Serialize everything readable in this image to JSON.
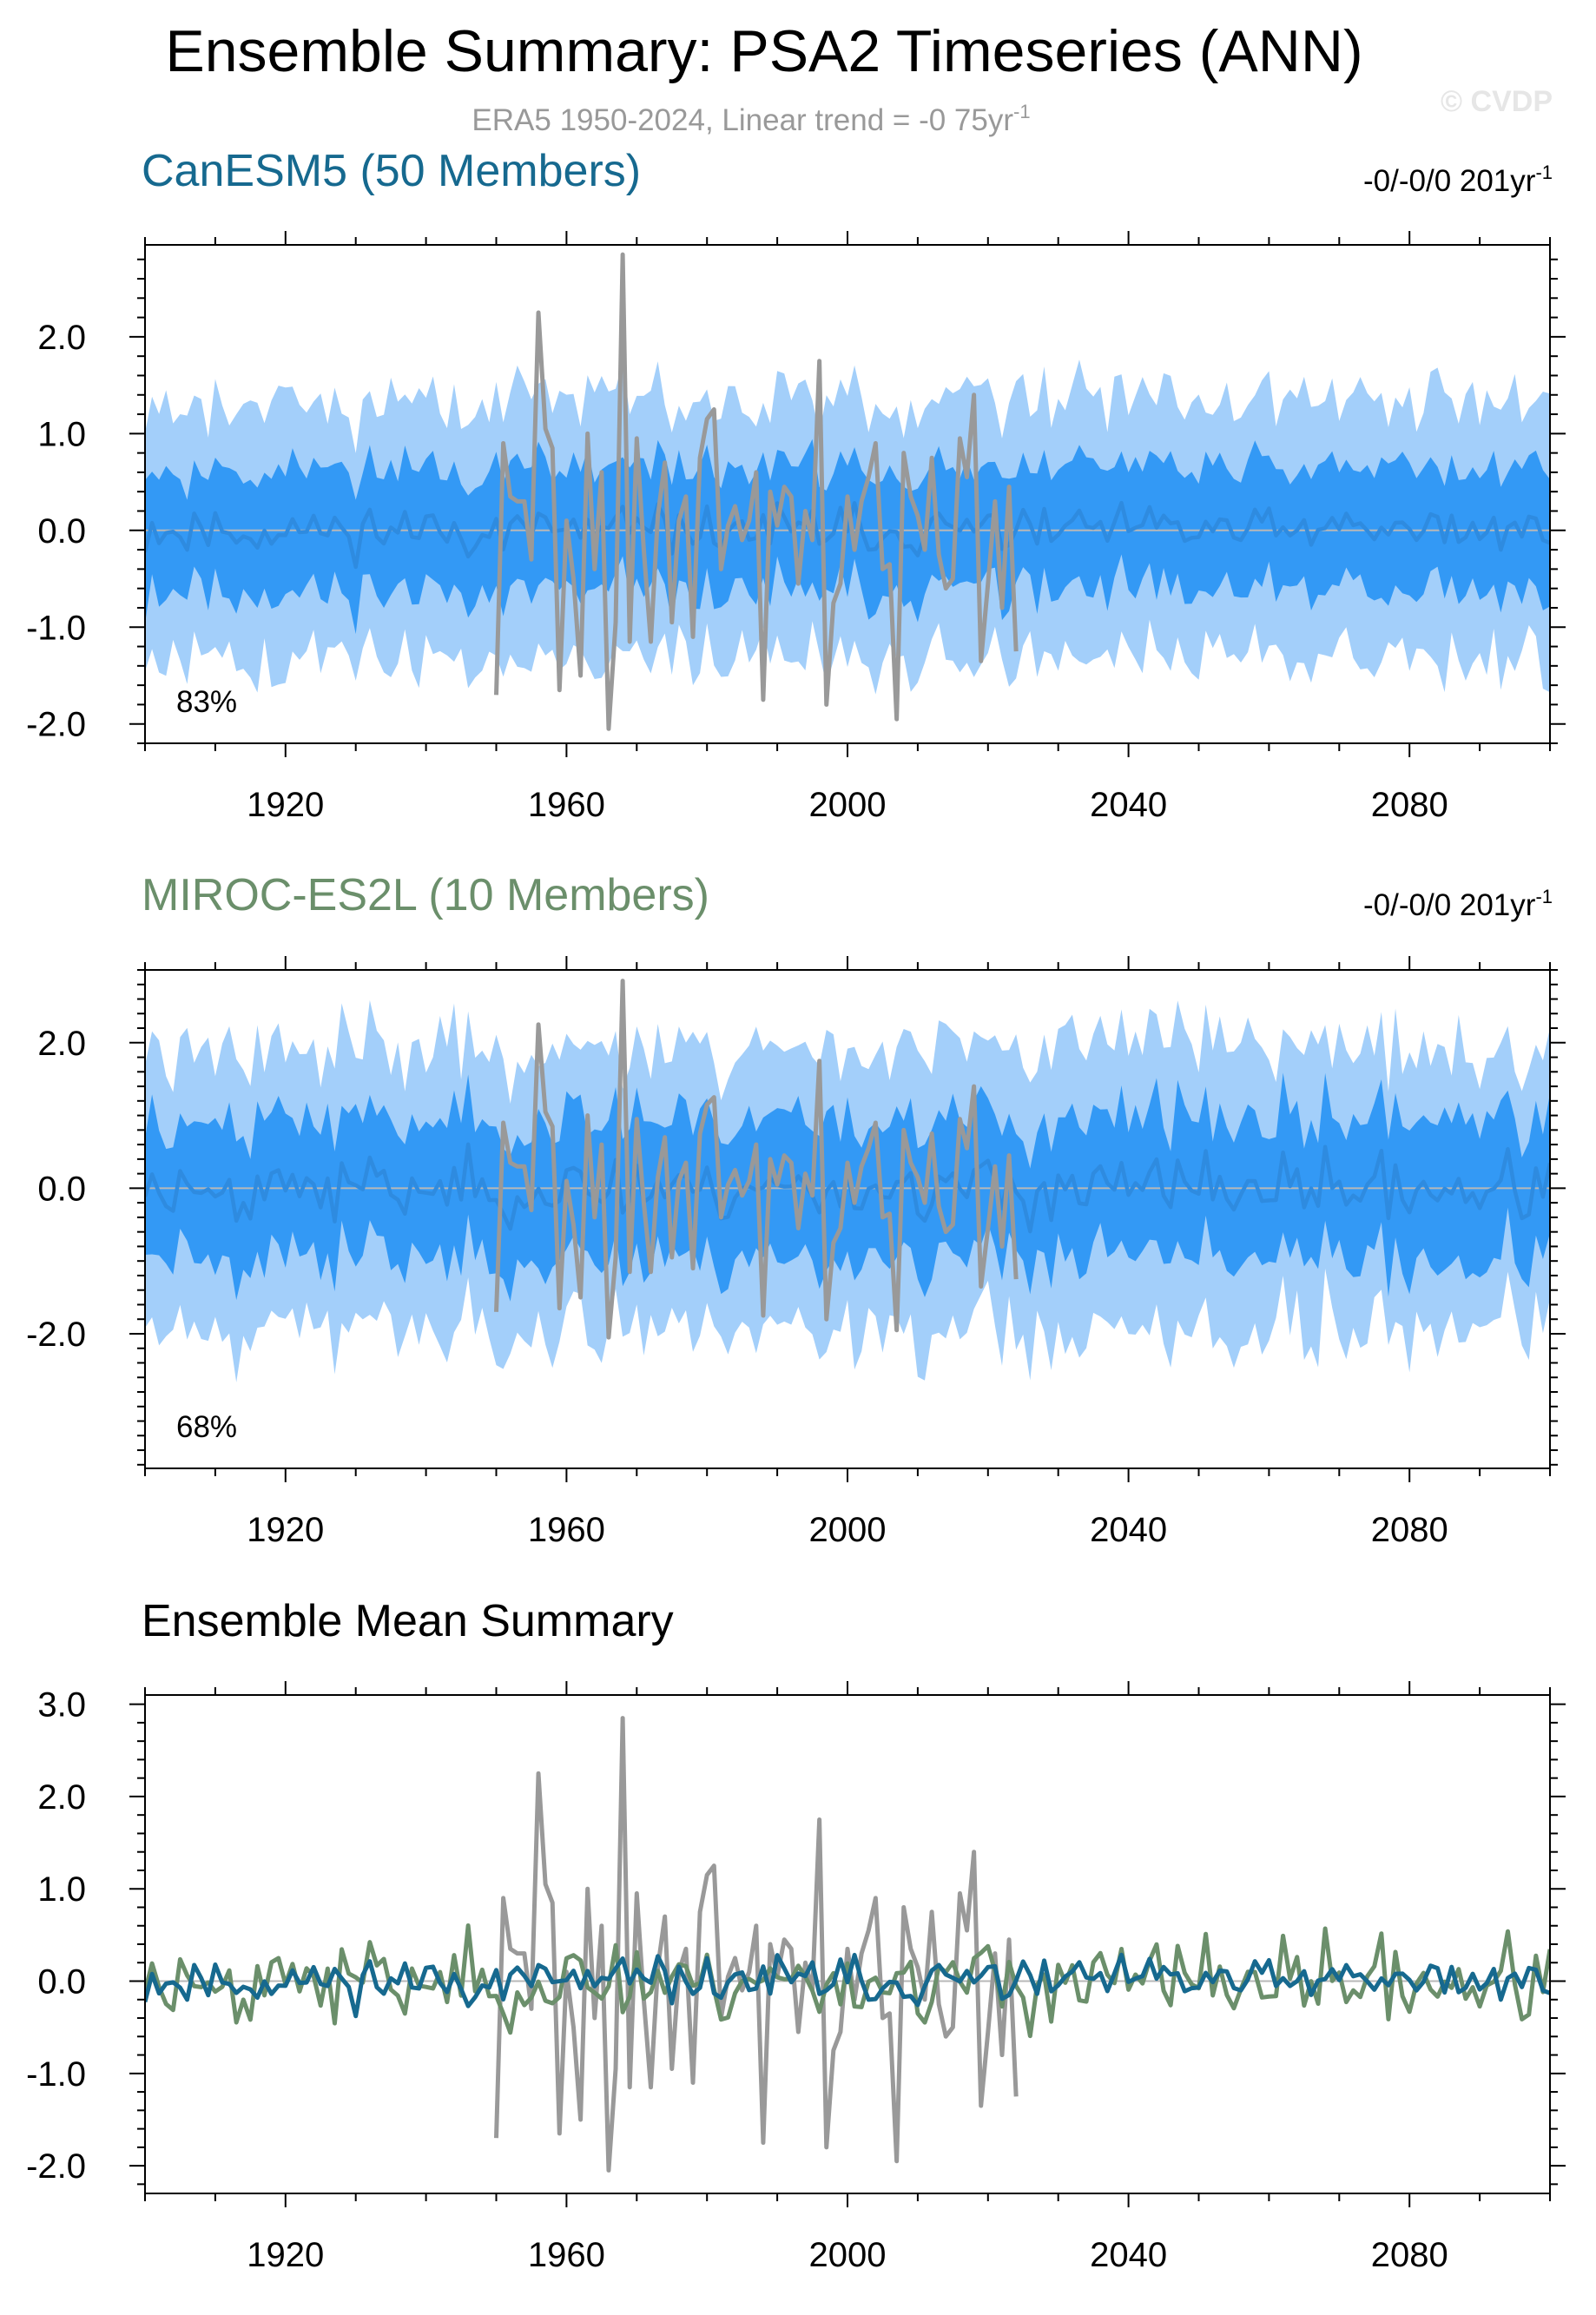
{
  "title": "Ensemble Summary: PSA2 Timeseries (ANN)",
  "subtitle": {
    "text": "ERA5 1950-2024, Linear trend = -0 75yr",
    "sup": "-1"
  },
  "watermark": "© CVDP",
  "colors": {
    "band_outer": "#a3cffa",
    "band_inner": "#3399f5",
    "ens_mean_line": "#2e8be0",
    "obs": "#999999",
    "canesm5": "#16698f",
    "miroc": "#6b8f6b",
    "zero_line": "#b8b8b8"
  },
  "chart_data": [
    {
      "type": "area",
      "title": "CanESM5 (50 Members)",
      "title_color": "#16698f",
      "trend_label": {
        "text": "-0/-0/0 201yr",
        "sup": "-1"
      },
      "percent_label": "83%",
      "xlim": [
        1900,
        2100
      ],
      "ylim": [
        -2.2,
        2.95
      ],
      "x_ticks": [
        1920,
        1960,
        2000,
        2040,
        2080
      ],
      "y_ticks": [
        2.0,
        1.0,
        0.0,
        -1.0,
        -2.0
      ],
      "y_tick_labels": [
        "2.0",
        "1.0",
        "0.0",
        "-1.0",
        "-2.0"
      ],
      "grid": false,
      "series": [
        {
          "name": "",
          "kind": "band",
          "spread_outer": 1.3,
          "spread_inner": 0.6,
          "mean_amp": 0.25,
          "seed": 11
        },
        {
          "name": "ERA5",
          "kind": "obs"
        }
      ]
    },
    {
      "type": "area",
      "title": "MIROC-ES2L (10 Members)",
      "title_color": "#6b8f6b",
      "trend_label": {
        "text": "-0/-0/0 201yr",
        "sup": "-1"
      },
      "percent_label": "68%",
      "xlim": [
        1900,
        2100
      ],
      "ylim": [
        -3.85,
        3.0
      ],
      "x_ticks": [
        1920,
        1960,
        2000,
        2040,
        2080
      ],
      "y_ticks": [
        2.0,
        0.0,
        -2.0
      ],
      "y_tick_labels": [
        "2.0",
        "0.0",
        "-2.0"
      ],
      "grid": false,
      "series": [
        {
          "name": "",
          "kind": "band",
          "spread_outer": 1.9,
          "spread_inner": 0.9,
          "mean_amp": 0.45,
          "seed": 23
        },
        {
          "name": "ERA5",
          "kind": "obs"
        }
      ]
    },
    {
      "type": "line",
      "title": "Ensemble Mean Summary",
      "title_color": "#000000",
      "xlim": [
        1900,
        2100
      ],
      "ylim": [
        -2.3,
        3.1
      ],
      "x_ticks": [
        1920,
        1960,
        2000,
        2040,
        2080
      ],
      "y_ticks": [
        3.0,
        2.0,
        1.0,
        0.0,
        -1.0,
        -2.0
      ],
      "y_tick_labels": [
        "3.0",
        "2.0",
        "1.0",
        "0.0",
        "-1.0",
        "-2.0"
      ],
      "grid": false,
      "series": [
        {
          "name": "ERA5",
          "kind": "obs"
        },
        {
          "name": "MIROC-ES2L",
          "kind": "mean",
          "amp": 0.45,
          "seed": 23
        },
        {
          "name": "CanESM5",
          "kind": "mean",
          "amp": 0.25,
          "seed": 11
        }
      ]
    }
  ],
  "obs_series": {
    "name": "ERA5",
    "x_start": 1950,
    "values": [
      -1.7,
      0.9,
      0.35,
      0.3,
      0.3,
      -0.3,
      2.25,
      1.05,
      0.85,
      -1.65,
      0.1,
      -0.5,
      -1.5,
      1.0,
      -0.4,
      0.6,
      -2.05,
      -0.95,
      2.85,
      -1.15,
      0.95,
      -0.2,
      -1.15,
      0.15,
      0.7,
      -0.95,
      0.1,
      0.35,
      -1.1,
      0.75,
      1.15,
      1.25,
      -0.4,
      0.05,
      0.25,
      -0.1,
      0.1,
      0.6,
      -1.75,
      0.4,
      0.05,
      0.45,
      0.35,
      -0.55,
      0.2,
      -0.1,
      1.75,
      -1.8,
      -0.75,
      -0.55,
      0.35,
      -0.2,
      0.3,
      0.55,
      0.9,
      -0.4,
      -0.35,
      -1.95,
      0.8,
      0.35,
      0.15,
      -0.2,
      0.75,
      -0.25,
      -0.6,
      -0.5,
      0.95,
      0.55,
      1.4,
      -1.35,
      -0.55,
      0.3,
      -0.8,
      0.45,
      -1.25
    ]
  }
}
